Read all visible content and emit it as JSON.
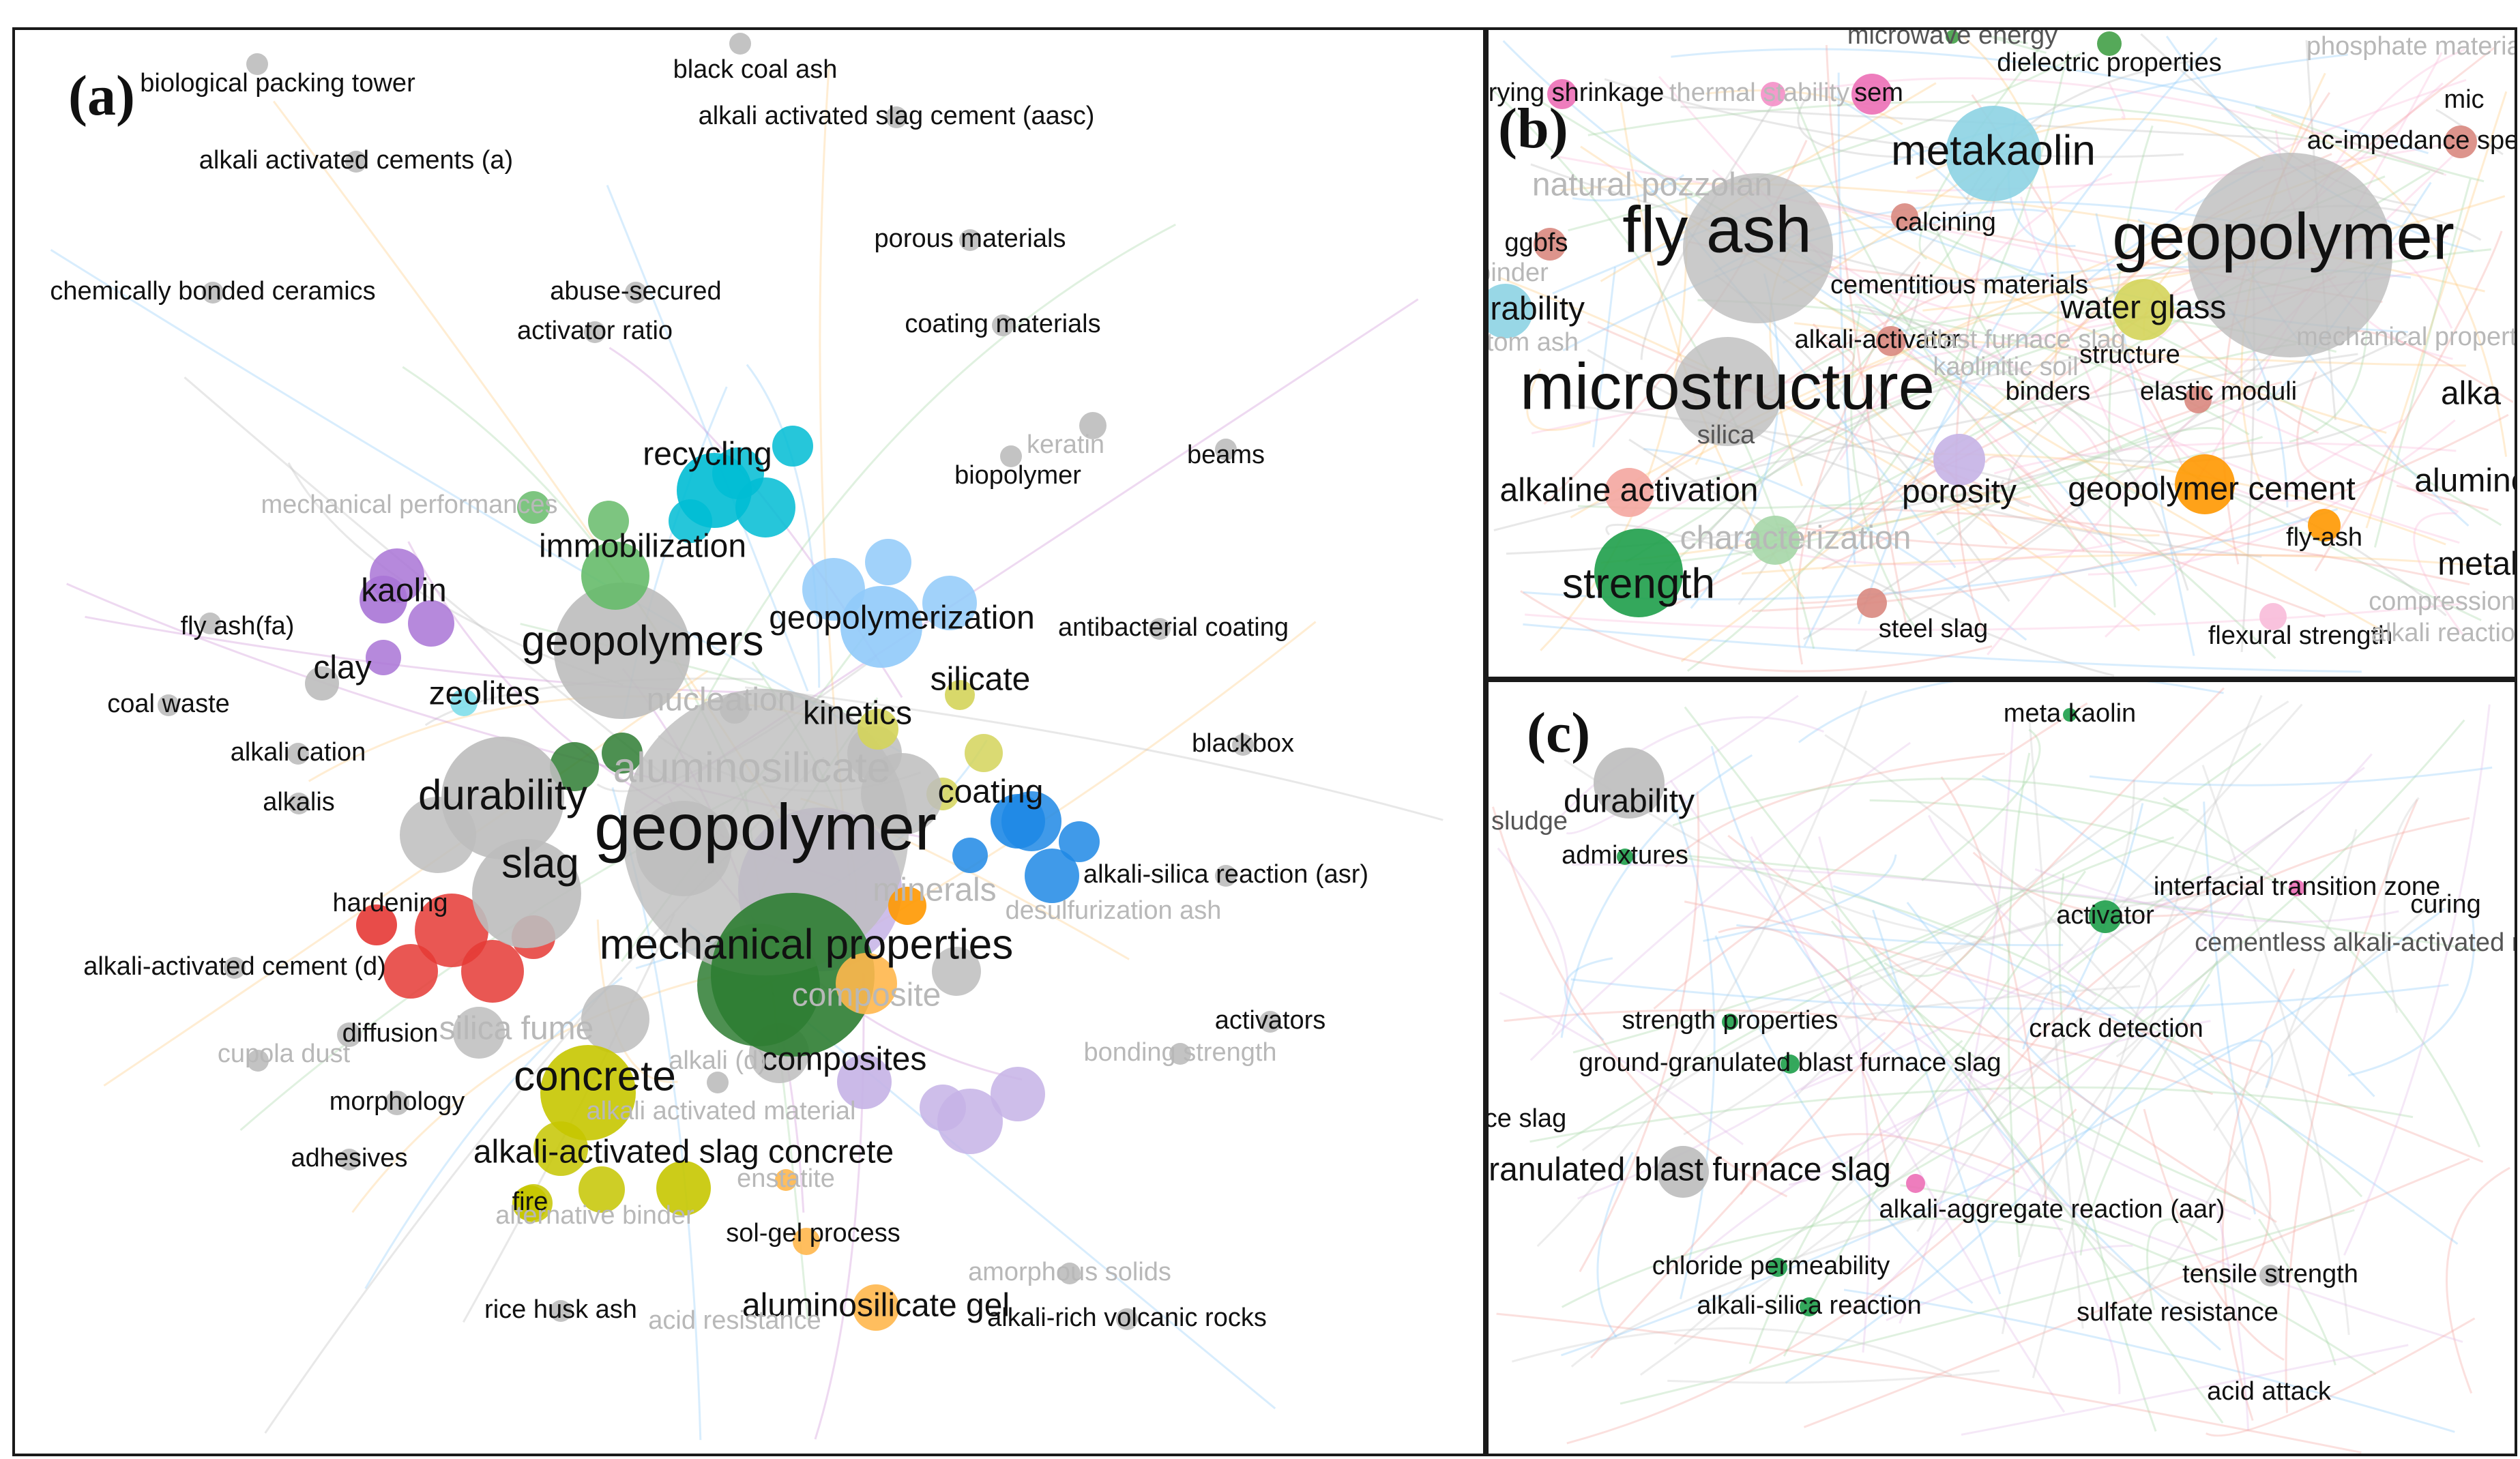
{
  "panels": {
    "a": {
      "label": "(a)",
      "nodes": [
        {
          "label": "geopolymer",
          "size": "xl",
          "color": "#bdbdbd",
          "r": 210,
          "tone": "dark"
        },
        {
          "label": "mechanical properties",
          "size": "l",
          "color": "#2e7d32",
          "r": 120,
          "tone": "dark"
        },
        {
          "label": "geopolymers",
          "size": "l",
          "color": "#bdbdbd",
          "r": 100,
          "tone": "dark"
        },
        {
          "label": "durability",
          "size": "l",
          "color": "#bdbdbd",
          "r": 90,
          "tone": "dark"
        },
        {
          "label": "slag",
          "size": "l",
          "color": "#bdbdbd",
          "r": 80,
          "tone": "dark"
        },
        {
          "label": "aluminosilicate",
          "size": "l",
          "color": "#e0e0e0",
          "r": 0,
          "tone": "faint"
        },
        {
          "label": "concrete",
          "size": "l",
          "color": "#c6c600",
          "r": 70,
          "tone": "dark"
        },
        {
          "label": "immobilization",
          "size": "m",
          "color": "#66bb6a",
          "r": 50,
          "tone": "dark"
        },
        {
          "label": "geopolymerization",
          "size": "m",
          "color": "#90caf9",
          "r": 60,
          "tone": "dark"
        },
        {
          "label": "recycling",
          "size": "m",
          "color": "#00bcd4",
          "r": 55,
          "tone": "dark"
        },
        {
          "label": "kinetics",
          "size": "m",
          "color": "#d4d45a",
          "r": 30,
          "tone": "dark"
        },
        {
          "label": "silicate",
          "size": "m",
          "color": "#d4d45a",
          "r": 22,
          "tone": "dark"
        },
        {
          "label": "coating",
          "size": "m",
          "color": "#1e88e5",
          "r": 40,
          "tone": "dark"
        },
        {
          "label": "minerals",
          "size": "m",
          "color": "#ff9800",
          "r": 28,
          "tone": "faint"
        },
        {
          "label": "composite",
          "size": "m",
          "color": "#ffb74d",
          "r": 45,
          "tone": "faint"
        },
        {
          "label": "composites",
          "size": "m",
          "color": "#c5b3e6",
          "r": 40,
          "tone": "dark"
        },
        {
          "label": "alkali-activated slag concrete",
          "size": "m",
          "color": "#c6c600",
          "r": 40,
          "tone": "dark"
        },
        {
          "label": "kaolin",
          "size": "m",
          "color": "#a974d6",
          "r": 35,
          "tone": "dark"
        },
        {
          "label": "clay",
          "size": "m",
          "color": "#bdbdbd",
          "r": 25,
          "tone": "dark"
        },
        {
          "label": "zeolites",
          "size": "m",
          "color": "#80deea",
          "r": 20,
          "tone": "dark"
        },
        {
          "label": "nucleation",
          "size": "m",
          "color": "#bdbdbd",
          "r": 22,
          "tone": "faint"
        },
        {
          "label": "hardening",
          "size": "s",
          "color": "#e53935",
          "r": 30,
          "tone": "dark"
        },
        {
          "label": "silica fume",
          "size": "m",
          "color": "#e0e0e0",
          "r": 0,
          "tone": "faint"
        },
        {
          "label": "diffusion",
          "size": "s",
          "color": "#bdbdbd",
          "r": 18,
          "tone": "dark"
        },
        {
          "label": "morphology",
          "size": "s",
          "color": "#bdbdbd",
          "r": 18,
          "tone": "dark"
        },
        {
          "label": "fire",
          "size": "s",
          "color": "#c6c600",
          "r": 26,
          "tone": "dark"
        },
        {
          "label": "alkali (d)",
          "size": "s",
          "color": "#bdbdbd",
          "r": 16,
          "tone": "faint"
        },
        {
          "label": "sol-gel process",
          "size": "s",
          "color": "#ffb74d",
          "r": 20,
          "tone": "dark"
        },
        {
          "label": "aluminosilicate gel",
          "size": "m",
          "color": "#ffb74d",
          "r": 34,
          "tone": "dark"
        },
        {
          "label": "biological packing tower",
          "size": "s",
          "color": "#bdbdbd",
          "r": 16,
          "tone": "dark"
        },
        {
          "label": "black coal ash",
          "size": "s",
          "color": "#bdbdbd",
          "r": 16,
          "tone": "dark"
        },
        {
          "label": "alkali activated slag cement (aasc)",
          "size": "s",
          "color": "#bdbdbd",
          "r": 16,
          "tone": "dark"
        },
        {
          "label": "alkali activated cements (a)",
          "size": "s",
          "color": "#bdbdbd",
          "r": 16,
          "tone": "dark"
        },
        {
          "label": "porous materials",
          "size": "s",
          "color": "#bdbdbd",
          "r": 16,
          "tone": "dark"
        },
        {
          "label": "chemically bonded ceramics",
          "size": "s",
          "color": "#bdbdbd",
          "r": 16,
          "tone": "dark"
        },
        {
          "label": "abuse-secured",
          "size": "s",
          "color": "#bdbdbd",
          "r": 16,
          "tone": "dark"
        },
        {
          "label": "activator ratio",
          "size": "s",
          "color": "#bdbdbd",
          "r": 16,
          "tone": "dark"
        },
        {
          "label": "coating materials",
          "size": "s",
          "color": "#bdbdbd",
          "r": 16,
          "tone": "dark"
        },
        {
          "label": "keratin",
          "size": "s",
          "color": "#bdbdbd",
          "r": 20,
          "tone": "faint"
        },
        {
          "label": "biopolymer",
          "size": "s",
          "color": "#bdbdbd",
          "r": 16,
          "tone": "dark"
        },
        {
          "label": "beams",
          "size": "s",
          "color": "#bdbdbd",
          "r": 16,
          "tone": "dark"
        },
        {
          "label": "mechanical performances",
          "size": "s",
          "color": "#bdbdbd",
          "r": 0,
          "tone": "faint"
        },
        {
          "label": "fly ash(fa)",
          "size": "s",
          "color": "#bdbdbd",
          "r": 16,
          "tone": "dark"
        },
        {
          "label": "antibacterial coating",
          "size": "s",
          "color": "#bdbdbd",
          "r": 16,
          "tone": "dark"
        },
        {
          "label": "coal waste",
          "size": "s",
          "color": "#bdbdbd",
          "r": 16,
          "tone": "dark"
        },
        {
          "label": "alkali cation",
          "size": "s",
          "color": "#bdbdbd",
          "r": 16,
          "tone": "dark"
        },
        {
          "label": "blackbox",
          "size": "s",
          "color": "#bdbdbd",
          "r": 16,
          "tone": "dark"
        },
        {
          "label": "alkalis",
          "size": "s",
          "color": "#bdbdbd",
          "r": 16,
          "tone": "dark"
        },
        {
          "label": "alkali-silica reaction (asr)",
          "size": "s",
          "color": "#bdbdbd",
          "r": 16,
          "tone": "dark"
        },
        {
          "label": "desulfurization ash",
          "size": "s",
          "color": "#bdbdbd",
          "r": 0,
          "tone": "faint"
        },
        {
          "label": "alkali-activated cement (d)",
          "size": "s",
          "color": "#bdbdbd",
          "r": 16,
          "tone": "dark"
        },
        {
          "label": "activators",
          "size": "s",
          "color": "#bdbdbd",
          "r": 16,
          "tone": "dark"
        },
        {
          "label": "cupola dust",
          "size": "s",
          "color": "#bdbdbd",
          "r": 16,
          "tone": "faint"
        },
        {
          "label": "bonding strength",
          "size": "s",
          "color": "#bdbdbd",
          "r": 16,
          "tone": "faint"
        },
        {
          "label": "adhesives",
          "size": "s",
          "color": "#bdbdbd",
          "r": 16,
          "tone": "dark"
        },
        {
          "label": "alkali activated material",
          "size": "s",
          "color": "#bdbdbd",
          "r": 0,
          "tone": "faint"
        },
        {
          "label": "enstatite",
          "size": "s",
          "color": "#ffb74d",
          "r": 16,
          "tone": "faint"
        },
        {
          "label": "alternative binder",
          "size": "s",
          "color": "#bdbdbd",
          "r": 0,
          "tone": "faint"
        },
        {
          "label": "amorphous solids",
          "size": "s",
          "color": "#bdbdbd",
          "r": 16,
          "tone": "faint"
        },
        {
          "label": "rice husk ash",
          "size": "s",
          "color": "#bdbdbd",
          "r": 16,
          "tone": "dark"
        },
        {
          "label": "acid resistance",
          "size": "s",
          "color": "#bdbdbd",
          "r": 0,
          "tone": "faint"
        },
        {
          "label": "alkali-rich volcanic rocks",
          "size": "s",
          "color": "#bdbdbd",
          "r": 16,
          "tone": "dark"
        }
      ]
    },
    "b": {
      "label": "(b)",
      "nodes": [
        {
          "label": "microwave energy",
          "size": "s",
          "color": "#43a047",
          "r": 10,
          "tone": "mid"
        },
        {
          "label": "dielectric properties",
          "size": "s",
          "color": "#43a047",
          "r": 18,
          "tone": "dark"
        },
        {
          "label": "phosphate materials",
          "size": "s",
          "color": "#bdbdbd",
          "r": 0,
          "tone": "faint"
        },
        {
          "label": "drying shrinkage",
          "size": "s",
          "color": "#ec6fb6",
          "r": 22,
          "tone": "dark"
        },
        {
          "label": "thermal stability",
          "size": "s",
          "color": "#f48fc8",
          "r": 18,
          "tone": "faint"
        },
        {
          "label": "sem",
          "size": "s",
          "color": "#ec6fb6",
          "r": 30,
          "tone": "dark"
        },
        {
          "label": "mic",
          "size": "s",
          "color": "#bdbdbd",
          "r": 0,
          "tone": "dark"
        },
        {
          "label": "ac-impedance spe",
          "size": "s",
          "color": "#d98880",
          "r": 24,
          "tone": "dark"
        },
        {
          "label": "metakaolin",
          "size": "l",
          "color": "#8dd3e3",
          "r": 70,
          "tone": "dark"
        },
        {
          "label": "natural pozzolan",
          "size": "m",
          "color": "#bdbdbd",
          "r": 0,
          "tone": "faint"
        },
        {
          "label": "fly ash",
          "size": "xl",
          "color": "#bdbdbd",
          "r": 110,
          "tone": "dark"
        },
        {
          "label": "geopolymer",
          "size": "xl",
          "color": "#bdbdbd",
          "r": 150,
          "tone": "dark"
        },
        {
          "label": "ggbfs",
          "size": "s",
          "color": "#d98880",
          "r": 24,
          "tone": "dark"
        },
        {
          "label": "calcining",
          "size": "s",
          "color": "#d98880",
          "r": 20,
          "tone": "dark"
        },
        {
          "label": "binder",
          "size": "s",
          "color": "#bdbdbd",
          "r": 0,
          "tone": "faint"
        },
        {
          "label": "cementitious materials",
          "size": "s",
          "color": "#bdbdbd",
          "r": 0,
          "tone": "dark"
        },
        {
          "label": "durability",
          "size": "m",
          "color": "#8dd3e3",
          "r": 40,
          "tone": "dark"
        },
        {
          "label": "water glass",
          "size": "m",
          "color": "#d4d45a",
          "r": 45,
          "tone": "dark"
        },
        {
          "label": "bottom ash",
          "size": "s",
          "color": "#bdbdbd",
          "r": 0,
          "tone": "faint"
        },
        {
          "label": "alkali-activator",
          "size": "s",
          "color": "#d98880",
          "r": 22,
          "tone": "dark"
        },
        {
          "label": "blast furnace slag",
          "size": "s",
          "color": "#bdbdbd",
          "r": 0,
          "tone": "faint"
        },
        {
          "label": "structure",
          "size": "s",
          "color": "#bdbdbd",
          "r": 0,
          "tone": "dark"
        },
        {
          "label": "mechanical properties",
          "size": "s",
          "color": "#bdbdbd",
          "r": 0,
          "tone": "faint"
        },
        {
          "label": "kaolinitic soil",
          "size": "s",
          "color": "#bdbdbd",
          "r": 0,
          "tone": "faint"
        },
        {
          "label": "microstructure",
          "size": "xl",
          "color": "#bdbdbd",
          "r": 80,
          "tone": "dark"
        },
        {
          "label": "binders",
          "size": "s",
          "color": "#bdbdbd",
          "r": 0,
          "tone": "dark"
        },
        {
          "label": "elastic moduli",
          "size": "s",
          "color": "#d98880",
          "r": 20,
          "tone": "dark"
        },
        {
          "label": "alka",
          "size": "m",
          "color": "#bdbdbd",
          "r": 0,
          "tone": "dark"
        },
        {
          "label": "silica",
          "size": "s",
          "color": "#bdbdbd",
          "r": 0,
          "tone": "mid"
        },
        {
          "label": "alkaline activation",
          "size": "m",
          "color": "#f4a6a0",
          "r": 36,
          "tone": "dark"
        },
        {
          "label": "porosity",
          "size": "m",
          "color": "#c5b3e6",
          "r": 38,
          "tone": "dark"
        },
        {
          "label": "geopolymer cement",
          "size": "m",
          "color": "#ff9800",
          "r": 44,
          "tone": "dark"
        },
        {
          "label": "aluminc",
          "size": "m",
          "color": "#bdbdbd",
          "r": 0,
          "tone": "dark"
        },
        {
          "label": "characterization",
          "size": "m",
          "color": "#a5d6a7",
          "r": 36,
          "tone": "faint"
        },
        {
          "label": "fly-ash",
          "size": "s",
          "color": "#ff9800",
          "r": 24,
          "tone": "dark"
        },
        {
          "label": "metaka",
          "size": "m",
          "color": "#bdbdbd",
          "r": 0,
          "tone": "dark"
        },
        {
          "label": "strength",
          "size": "l",
          "color": "#1e9e4a",
          "r": 65,
          "tone": "dark"
        },
        {
          "label": "compression re",
          "size": "s",
          "color": "#bdbdbd",
          "r": 0,
          "tone": "faint"
        },
        {
          "label": "steel slag",
          "size": "s",
          "color": "#d98880",
          "r": 22,
          "tone": "dark"
        },
        {
          "label": "flexural strength",
          "size": "s",
          "color": "#f8bbd9",
          "r": 20,
          "tone": "dark"
        },
        {
          "label": "alkali reaction",
          "size": "s",
          "color": "#bdbdbd",
          "r": 0,
          "tone": "faint"
        }
      ]
    },
    "c": {
      "label": "(c)",
      "nodes": [
        {
          "label": "meta kaolin",
          "size": "s",
          "color": "#1e9e4a",
          "r": 10,
          "tone": "dark"
        },
        {
          "label": "durability",
          "size": "m",
          "color": "#bdbdbd",
          "r": 52,
          "tone": "dark"
        },
        {
          "label": "sludge",
          "size": "s",
          "color": "#bdbdbd",
          "r": 0,
          "tone": "mid"
        },
        {
          "label": "admixtures",
          "size": "s",
          "color": "#1e9e4a",
          "r": 12,
          "tone": "dark"
        },
        {
          "label": "interfacial transition zone",
          "size": "s",
          "color": "#ec6fb6",
          "r": 12,
          "tone": "dark"
        },
        {
          "label": "curing",
          "size": "s",
          "color": "#bdbdbd",
          "r": 0,
          "tone": "dark"
        },
        {
          "label": "activator",
          "size": "s",
          "color": "#1e9e4a",
          "r": 24,
          "tone": "dark"
        },
        {
          "label": "cementless alkali-activated morta",
          "size": "s",
          "color": "#bdbdbd",
          "r": 0,
          "tone": "mid"
        },
        {
          "label": "strength properties",
          "size": "s",
          "color": "#1e9e4a",
          "r": 12,
          "tone": "dark"
        },
        {
          "label": "crack detection",
          "size": "s",
          "color": "#bdbdbd",
          "r": 0,
          "tone": "dark"
        },
        {
          "label": "ground-granulated blast furnace slag",
          "size": "s",
          "color": "#1e9e4a",
          "r": 14,
          "tone": "dark"
        },
        {
          "label": "ce slag",
          "size": "s",
          "color": "#bdbdbd",
          "r": 0,
          "tone": "dark"
        },
        {
          "label": "ranulated blast furnace slag",
          "size": "m",
          "color": "#bdbdbd",
          "r": 38,
          "tone": "dark"
        },
        {
          "label": "alkali-aggregate reaction (aar)",
          "size": "s",
          "color": "#ec6fb6",
          "r": 14,
          "tone": "dark"
        },
        {
          "label": "chloride permeability",
          "size": "s",
          "color": "#1e9e4a",
          "r": 14,
          "tone": "dark"
        },
        {
          "label": "tensile strength",
          "size": "s",
          "color": "#bdbdbd",
          "r": 16,
          "tone": "dark"
        },
        {
          "label": "alkali-silica reaction",
          "size": "s",
          "color": "#1e9e4a",
          "r": 14,
          "tone": "dark"
        },
        {
          "label": "sulfate resistance",
          "size": "s",
          "color": "#bdbdbd",
          "r": 0,
          "tone": "dark"
        },
        {
          "label": "acid attack",
          "size": "s",
          "color": "#bdbdbd",
          "r": 0,
          "tone": "dark"
        }
      ]
    }
  }
}
